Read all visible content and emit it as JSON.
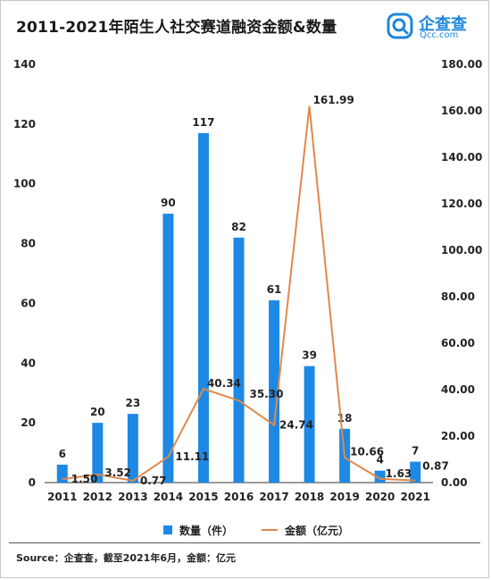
{
  "title": "2011-2021年陌生人社交赛道融资金额&数量",
  "logo": {
    "main": "企查查",
    "sub": "Qcc.com"
  },
  "source": "Source：企查查，截至2021年6月，金额：亿元",
  "colors": {
    "bar": "#1e88e5",
    "line": "#e0894a"
  },
  "chart_data": {
    "type": "bar",
    "title": "2011-2021年陌生人社交赛道融资金额&数量",
    "categories": [
      "2011",
      "2012",
      "2013",
      "2014",
      "2015",
      "2016",
      "2017",
      "2018",
      "2019",
      "2020",
      "2021"
    ],
    "series": [
      {
        "name": "数量（件）",
        "type": "bar",
        "axis": "left",
        "values": [
          6,
          20,
          23,
          90,
          117,
          82,
          61,
          39,
          18,
          4,
          7
        ],
        "labels": [
          "6",
          "20",
          "23",
          "90",
          "117",
          "82",
          "61",
          "39",
          "18",
          "4",
          "7"
        ]
      },
      {
        "name": "金额（亿元）",
        "type": "line",
        "axis": "right",
        "values": [
          1.5,
          3.52,
          0.77,
          11.11,
          40.34,
          35.3,
          24.74,
          161.99,
          10.66,
          1.63,
          0.87
        ],
        "labels": [
          "1.50",
          "3.52",
          "0.77",
          "11.11",
          "40.34",
          "35.30",
          "24.74",
          "161.99",
          "10.66",
          "1.63",
          "0.87"
        ]
      }
    ],
    "ylim_left": [
      0,
      140
    ],
    "yticks_left": [
      "0",
      "20",
      "40",
      "60",
      "80",
      "100",
      "120",
      "140"
    ],
    "ylim_right": [
      0,
      180
    ],
    "yticks_right": [
      "0.00",
      "20.00",
      "40.00",
      "60.00",
      "80.00",
      "100.00",
      "120.00",
      "140.00",
      "160.00",
      "180.00"
    ],
    "grid": false,
    "legend": "bottom"
  }
}
